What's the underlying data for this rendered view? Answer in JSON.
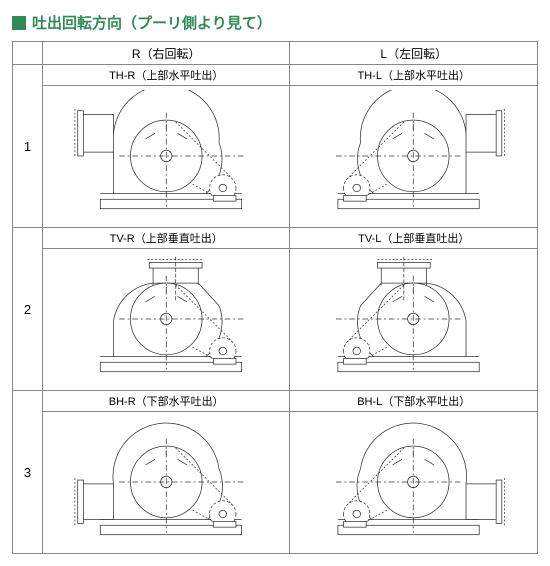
{
  "title": {
    "marker_color": "#2e8b57",
    "text_color": "#2e8b57",
    "text": "吐出回転方向（プーリ側より見て）"
  },
  "table": {
    "border_color": "#888888",
    "bg_color": "#ffffff",
    "diagram_stroke": "#333333",
    "diagram_stroke_width": 0.8,
    "columns": [
      {
        "key": "R",
        "label": "R（右回転）"
      },
      {
        "key": "L",
        "label": "L（左回転）"
      }
    ],
    "rows": [
      {
        "num": "1",
        "cells": [
          {
            "label": "TH-R（上部水平吐出）",
            "type": "TH",
            "mirror": false
          },
          {
            "label": "TH-L（上部水平吐出）",
            "type": "TH",
            "mirror": true
          }
        ]
      },
      {
        "num": "2",
        "cells": [
          {
            "label": "TV-R（上部垂直吐出）",
            "type": "TV",
            "mirror": false
          },
          {
            "label": "TV-L（上部垂直吐出）",
            "type": "TV",
            "mirror": true
          }
        ]
      },
      {
        "num": "3",
        "cells": [
          {
            "label": "BH-R（下部水平吐出）",
            "type": "BH",
            "mirror": false
          },
          {
            "label": "BH-L（下部水平吐出）",
            "type": "BH",
            "mirror": true
          }
        ]
      }
    ]
  }
}
